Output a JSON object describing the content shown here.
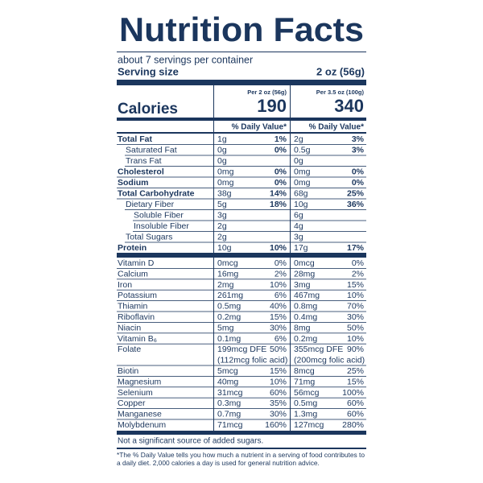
{
  "title": "Nutrition Facts",
  "servings": "about 7 servings per container",
  "serving_size": {
    "label": "Serving size",
    "value": "2 oz (56g)"
  },
  "calories": {
    "label": "Calories",
    "columns": [
      {
        "header": "Per 2 oz (56g)",
        "value": "190"
      },
      {
        "header": "Per 3.5 oz (100g)",
        "value": "340"
      }
    ]
  },
  "daily_value_header": [
    "% Daily Value*",
    "% Daily Value*"
  ],
  "nutrients": [
    {
      "label": "Total Fat",
      "columns": [
        {
          "amount": "1g",
          "dv": "1%"
        },
        {
          "amount": "2g",
          "dv": "3%"
        }
      ]
    },
    {
      "label": "Saturated Fat",
      "columns": [
        {
          "amount": "0g",
          "dv": "0%"
        },
        {
          "amount": "0.5g",
          "dv": "3%"
        }
      ]
    },
    {
      "label": "Trans Fat",
      "columns": [
        {
          "amount": "0g"
        },
        {
          "amount": "0g"
        }
      ]
    },
    {
      "label": "Cholesterol",
      "columns": [
        {
          "amount": "0mg",
          "dv": "0%"
        },
        {
          "amount": "0mg",
          "dv": "0%"
        }
      ]
    },
    {
      "label": "Sodium",
      "columns": [
        {
          "amount": "0mg",
          "dv": "0%"
        },
        {
          "amount": "0mg",
          "dv": "0%"
        }
      ]
    },
    {
      "label": "Total Carbohydrate",
      "columns": [
        {
          "amount": "38g",
          "dv": "14%"
        },
        {
          "amount": "68g",
          "dv": "25%"
        }
      ]
    },
    {
      "label": "Dietary Fiber",
      "columns": [
        {
          "amount": "5g",
          "dv": "18%"
        },
        {
          "amount": "10g",
          "dv": "36%"
        }
      ]
    },
    {
      "label": "Soluble Fiber",
      "columns": [
        {
          "amount": "3g"
        },
        {
          "amount": "6g"
        }
      ]
    },
    {
      "label": "Insoluble Fiber",
      "columns": [
        {
          "amount": "2g"
        },
        {
          "amount": "4g"
        }
      ]
    },
    {
      "label": "Total Sugars",
      "columns": [
        {
          "amount": "2g"
        },
        {
          "amount": "3g"
        }
      ]
    },
    {
      "label": "Protein",
      "columns": [
        {
          "amount": "10g",
          "dv": "10%"
        },
        {
          "amount": "17g",
          "dv": "17%"
        }
      ]
    }
  ],
  "vitamins": [
    {
      "label": "Vitamin D",
      "columns": [
        {
          "amount": "0mcg",
          "dv": "0%"
        },
        {
          "amount": "0mcg",
          "dv": "0%"
        }
      ]
    },
    {
      "label": "Calcium",
      "columns": [
        {
          "amount": "16mg",
          "dv": "2%"
        },
        {
          "amount": "28mg",
          "dv": "2%"
        }
      ]
    },
    {
      "label": "Iron",
      "columns": [
        {
          "amount": "2mg",
          "dv": "10%"
        },
        {
          "amount": "3mg",
          "dv": "15%"
        }
      ]
    },
    {
      "label": "Potassium",
      "columns": [
        {
          "amount": "261mg",
          "dv": "6%"
        },
        {
          "amount": "467mg",
          "dv": "10%"
        }
      ]
    },
    {
      "label": "Thiamin",
      "columns": [
        {
          "amount": "0.5mg",
          "dv": "40%"
        },
        {
          "amount": "0.8mg",
          "dv": "70%"
        }
      ]
    },
    {
      "label": "Riboflavin",
      "columns": [
        {
          "amount": "0.2mg",
          "dv": "15%"
        },
        {
          "amount": "0.4mg",
          "dv": "30%"
        }
      ]
    },
    {
      "label": "Niacin",
      "columns": [
        {
          "amount": "5mg",
          "dv": "30%"
        },
        {
          "amount": "8mg",
          "dv": "50%"
        }
      ]
    },
    {
      "label": "Vitamin B₆",
      "columns": [
        {
          "amount": "0.1mg",
          "dv": "6%"
        },
        {
          "amount": "0.2mg",
          "dv": "10%"
        }
      ]
    },
    {
      "label": "Folate",
      "columns": [
        {
          "amount": "199mcg DFE",
          "dv": "50%",
          "note": "(112mcg folic acid)"
        },
        {
          "amount": "355mcg DFE",
          "dv": "90%",
          "note": "(200mcg folic acid)"
        }
      ]
    },
    {
      "label": "Biotin",
      "columns": [
        {
          "amount": "5mcg",
          "dv": "15%"
        },
        {
          "amount": "8mcg",
          "dv": "25%"
        }
      ]
    },
    {
      "label": "Magnesium",
      "columns": [
        {
          "amount": "40mg",
          "dv": "10%"
        },
        {
          "amount": "71mg",
          "dv": "15%"
        }
      ]
    },
    {
      "label": "Selenium",
      "columns": [
        {
          "amount": "31mcg",
          "dv": "60%"
        },
        {
          "amount": "56mcg",
          "dv": "100%"
        }
      ]
    },
    {
      "label": "Copper",
      "columns": [
        {
          "amount": "0.3mg",
          "dv": "35%"
        },
        {
          "amount": "0.5mg",
          "dv": "60%"
        }
      ]
    },
    {
      "label": "Manganese",
      "columns": [
        {
          "amount": "0.7mg",
          "dv": "30%"
        },
        {
          "amount": "1.3mg",
          "dv": "60%"
        }
      ]
    },
    {
      "label": "Molybdenum",
      "columns": [
        {
          "amount": "71mcg",
          "dv": "160%"
        },
        {
          "amount": "127mcg",
          "dv": "280%"
        }
      ]
    }
  ],
  "sugar_note": "Not a significant source of added sugars.",
  "footnote": "*The % Daily Value tells you how much a nutrient in a serving of food contributes to a daily diet. 2,000 calories a day is used for general nutrition advice."
}
